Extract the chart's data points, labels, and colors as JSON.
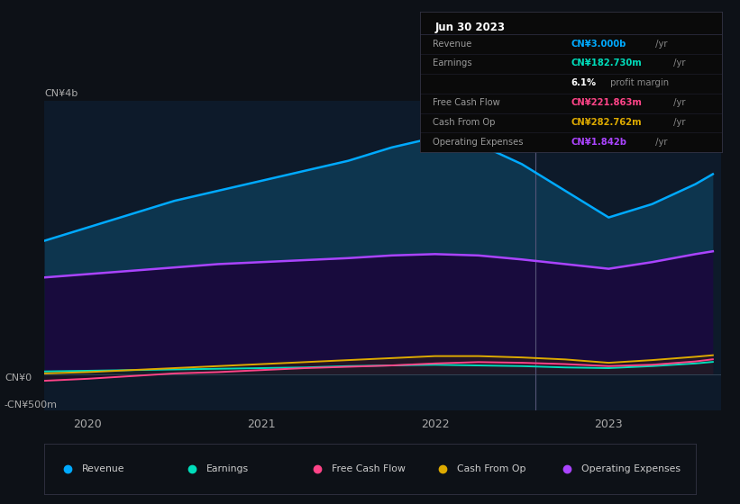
{
  "bg_color": "#0d1117",
  "chart_bg": "#0d1a2a",
  "x": [
    2019.75,
    2020.0,
    2020.25,
    2020.5,
    2020.75,
    2021.0,
    2021.25,
    2021.5,
    2021.75,
    2022.0,
    2022.25,
    2022.5,
    2022.75,
    2023.0,
    2023.25,
    2023.5,
    2023.6
  ],
  "revenue": [
    2.0,
    2.2,
    2.4,
    2.6,
    2.75,
    2.9,
    3.05,
    3.2,
    3.4,
    3.55,
    3.45,
    3.15,
    2.75,
    2.35,
    2.55,
    2.85,
    3.0
  ],
  "operating_expenses": [
    1.45,
    1.5,
    1.55,
    1.6,
    1.65,
    1.68,
    1.71,
    1.74,
    1.78,
    1.8,
    1.78,
    1.72,
    1.65,
    1.58,
    1.68,
    1.8,
    1.842
  ],
  "earnings": [
    0.04,
    0.05,
    0.06,
    0.07,
    0.08,
    0.09,
    0.1,
    0.12,
    0.13,
    0.14,
    0.13,
    0.12,
    0.1,
    0.09,
    0.12,
    0.16,
    0.183
  ],
  "free_cash_flow": [
    -0.1,
    -0.07,
    -0.03,
    0.01,
    0.03,
    0.06,
    0.09,
    0.11,
    0.13,
    0.16,
    0.18,
    0.17,
    0.15,
    0.12,
    0.14,
    0.19,
    0.222
  ],
  "cash_from_op": [
    0.01,
    0.03,
    0.06,
    0.09,
    0.12,
    0.15,
    0.18,
    0.21,
    0.24,
    0.27,
    0.27,
    0.25,
    0.22,
    0.17,
    0.21,
    0.26,
    0.283
  ],
  "colors": {
    "revenue": "#00aaff",
    "operating_expenses": "#aa44ff",
    "earnings": "#00ddbb",
    "free_cash_flow": "#ff4488",
    "cash_from_op": "#ddaa00"
  },
  "vline_x": 2022.58,
  "xlim_left": 2019.75,
  "xlim_right": 2023.65,
  "ylim_bottom": -0.55,
  "ylim_top": 4.1,
  "xtick_positions": [
    2020,
    2021,
    2022,
    2023
  ],
  "xtick_labels": [
    "2020",
    "2021",
    "2022",
    "2023"
  ],
  "legend": [
    {
      "label": "Revenue",
      "color": "#00aaff"
    },
    {
      "label": "Earnings",
      "color": "#00ddbb"
    },
    {
      "label": "Free Cash Flow",
      "color": "#ff4488"
    },
    {
      "label": "Cash From Op",
      "color": "#ddaa00"
    },
    {
      "label": "Operating Expenses",
      "color": "#aa44ff"
    }
  ],
  "table_title": "Jun 30 2023",
  "table_rows": [
    {
      "label": "Revenue",
      "value": "CN¥3.000b",
      "unit": " /yr",
      "color": "#00aaff"
    },
    {
      "label": "Earnings",
      "value": "CN¥182.730m",
      "unit": " /yr",
      "color": "#00ddbb"
    },
    {
      "label": "",
      "value": "6.1%",
      "unit": " profit margin",
      "color": "#ffffff"
    },
    {
      "label": "Free Cash Flow",
      "value": "CN¥221.863m",
      "unit": " /yr",
      "color": "#ff4488"
    },
    {
      "label": "Cash From Op",
      "value": "CN¥282.762m",
      "unit": " /yr",
      "color": "#ddaa00"
    },
    {
      "label": "Operating Expenses",
      "value": "CN¥1.842b",
      "unit": " /yr",
      "color": "#aa44ff"
    }
  ]
}
